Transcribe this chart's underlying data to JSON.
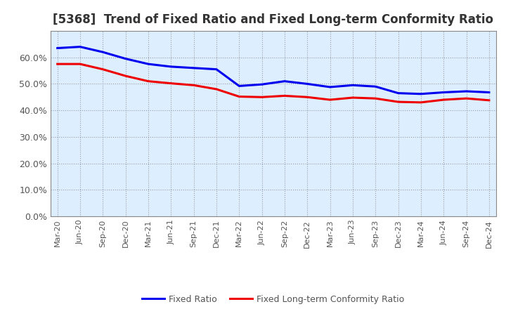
{
  "title": "[5368]  Trend of Fixed Ratio and Fixed Long-term Conformity Ratio",
  "x_labels": [
    "Mar-20",
    "Jun-20",
    "Sep-20",
    "Dec-20",
    "Mar-21",
    "Jun-21",
    "Sep-21",
    "Dec-21",
    "Mar-22",
    "Jun-22",
    "Sep-22",
    "Dec-22",
    "Mar-23",
    "Jun-23",
    "Sep-23",
    "Dec-23",
    "Mar-24",
    "Jun-24",
    "Sep-24",
    "Dec-24"
  ],
  "fixed_ratio": [
    0.635,
    0.64,
    0.62,
    0.595,
    0.575,
    0.565,
    0.56,
    0.555,
    0.492,
    0.498,
    0.51,
    0.5,
    0.488,
    0.495,
    0.49,
    0.465,
    0.462,
    0.468,
    0.472,
    0.468
  ],
  "fixed_lt_ratio": [
    0.575,
    0.575,
    0.555,
    0.53,
    0.51,
    0.502,
    0.495,
    0.48,
    0.452,
    0.45,
    0.455,
    0.45,
    0.44,
    0.448,
    0.445,
    0.432,
    0.43,
    0.44,
    0.445,
    0.438
  ],
  "fixed_ratio_color": "#0000EE",
  "fixed_lt_ratio_color": "#EE0000",
  "ylim": [
    0.0,
    0.7
  ],
  "yticks": [
    0.0,
    0.1,
    0.2,
    0.3,
    0.4,
    0.5,
    0.6
  ],
  "background_color": "#FFFFFF",
  "plot_bg_color": "#DDEEFF",
  "grid_color": "#888888",
  "title_fontsize": 12,
  "legend_fixed_ratio": "Fixed Ratio",
  "legend_fixed_lt_ratio": "Fixed Long-term Conformity Ratio",
  "tick_label_color": "#555555",
  "spine_color": "#888888"
}
